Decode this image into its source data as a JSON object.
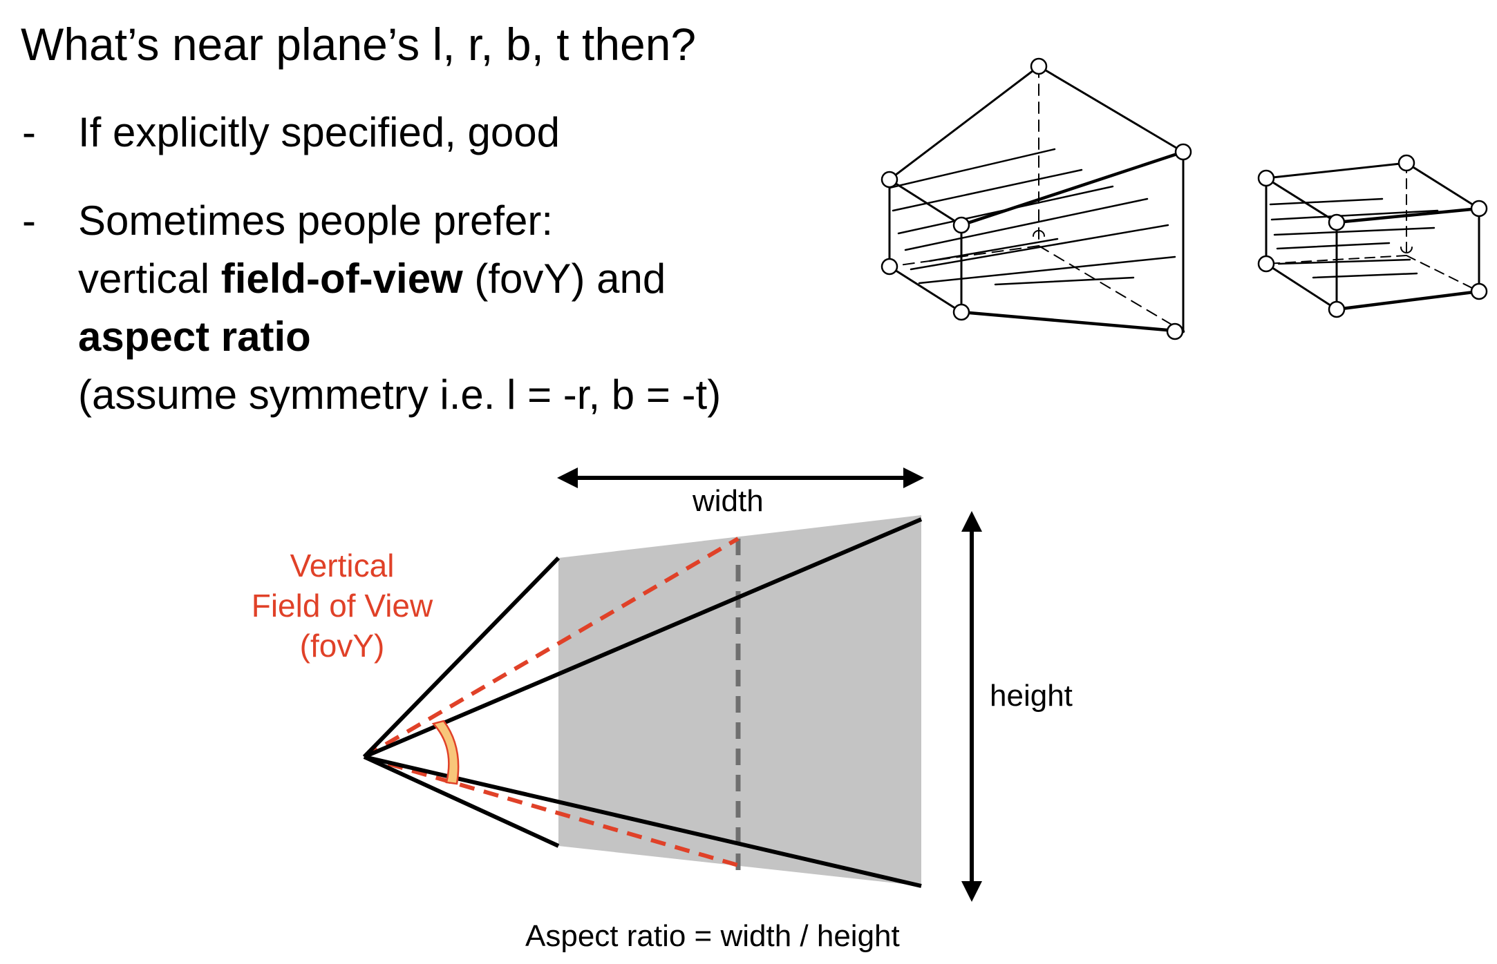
{
  "slide": {
    "title": "What’s near plane’s l, r, b, t then?",
    "bullets": [
      {
        "marker": "-",
        "line1": "If explicitly specified, good"
      },
      {
        "marker": "-",
        "line1": "Sometimes people prefer:",
        "line2_pre": "vertical ",
        "line2_bold": "field-of-view",
        "line2_post": " (fovY) and",
        "line3_bold": "aspect ratio",
        "line4": "(assume symmetry i.e. l = -r, b = -t)"
      }
    ]
  },
  "diagram": {
    "fov_label_lines": [
      "Vertical",
      "Field of View",
      "(fovY)"
    ],
    "width_label": "width",
    "height_label": "height",
    "aspect_caption": "Aspect ratio = width / height"
  },
  "colors": {
    "text": "#000000",
    "accent_red": "#e04128",
    "near_plane_gray": "#c4c4c4",
    "dashed_center": "#6f6f6f",
    "fov_arc_fill": "#f8c67a"
  }
}
